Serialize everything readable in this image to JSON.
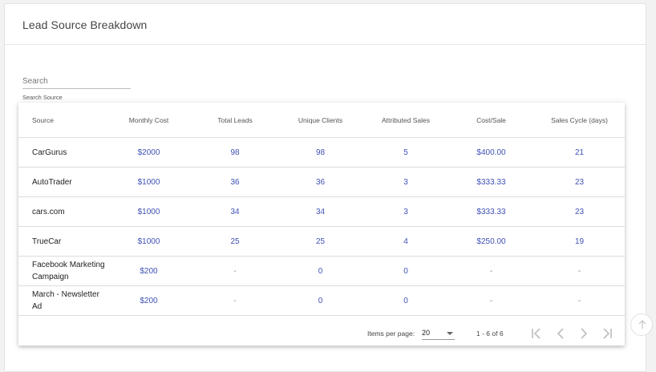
{
  "card": {
    "title": "Lead Source Breakdown"
  },
  "search": {
    "placeholder": "Search",
    "value": "",
    "hint": "Search Source"
  },
  "table": {
    "columns": [
      "Source",
      "Monthly Cost",
      "Total Leads",
      "Unique Clients",
      "Attributed Sales",
      "Cost/Sale",
      "Sales Cycle (days)"
    ],
    "rows": [
      [
        "CarGurus",
        "$2000",
        "98",
        "98",
        "5",
        "$400.00",
        "21"
      ],
      [
        "AutoTrader",
        "$1000",
        "36",
        "36",
        "3",
        "$333.33",
        "23"
      ],
      [
        "cars.com",
        "$1000",
        "34",
        "34",
        "3",
        "$333.33",
        "23"
      ],
      [
        "TrueCar",
        "$1000",
        "25",
        "25",
        "4",
        "$250.00",
        "19"
      ],
      [
        "Facebook Marketing Campaign",
        "$200",
        "-",
        "0",
        "0",
        "-",
        "-"
      ],
      [
        "March - Newsletter Ad",
        "$200",
        "-",
        "0",
        "0",
        "-",
        "-"
      ]
    ]
  },
  "paginator": {
    "items_per_page_label": "Items per page:",
    "items_per_page": "20",
    "range": "1 - 6 of 6",
    "icons": [
      "first-page-icon",
      "chevron-left-icon",
      "chevron-right-icon",
      "last-page-icon"
    ]
  },
  "fab": {
    "icon": "arrow-up-icon"
  },
  "colors": {
    "link": "#3f51b5",
    "text": "#222222",
    "muted": "#555555",
    "border": "#dcdcdc"
  }
}
